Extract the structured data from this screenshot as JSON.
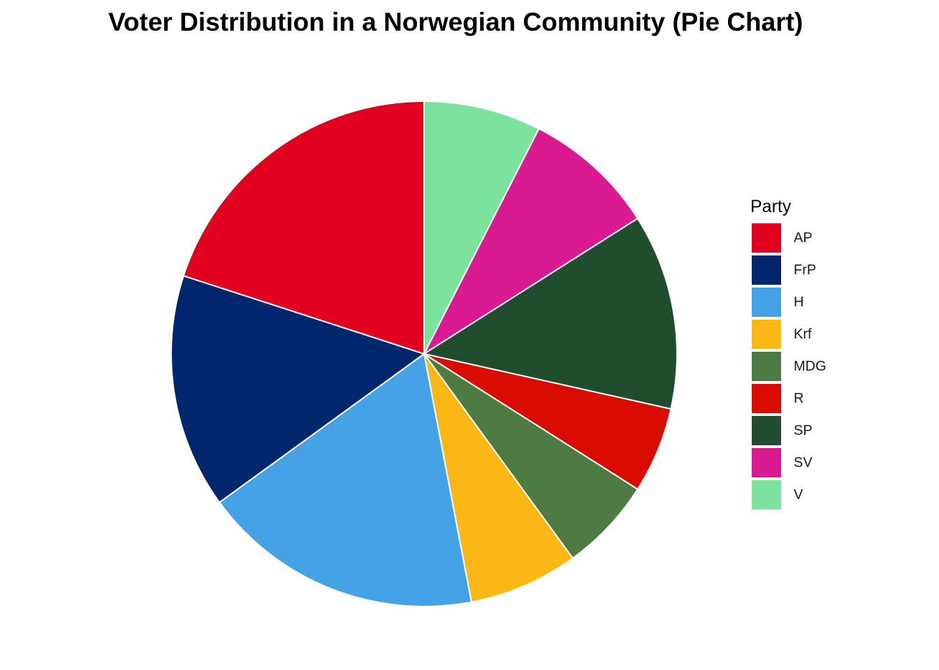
{
  "chart_data": {
    "type": "pie",
    "title": "Voter Distribution in a Norwegian Community (Pie Chart)",
    "legend_title": "Party",
    "legend_position": "right",
    "start_angle_deg": 0,
    "direction": "clockwise",
    "slice_order": [
      "V",
      "SV",
      "SP",
      "R",
      "MDG",
      "Krf",
      "H",
      "FrP",
      "AP"
    ],
    "series": [
      {
        "name": "AP",
        "value": 20.0,
        "color": "#E1001E"
      },
      {
        "name": "FrP",
        "value": 15.0,
        "color": "#00266E"
      },
      {
        "name": "H",
        "value": 18.0,
        "color": "#45A3E5"
      },
      {
        "name": "Krf",
        "value": 7.0,
        "color": "#FBB716"
      },
      {
        "name": "MDG",
        "value": 6.0,
        "color": "#4E7B44"
      },
      {
        "name": "R",
        "value": 5.5,
        "color": "#DA0B00"
      },
      {
        "name": "SP",
        "value": 12.5,
        "color": "#1F4D2E"
      },
      {
        "name": "SV",
        "value": 8.5,
        "color": "#D91A91"
      },
      {
        "name": "V",
        "value": 7.5,
        "color": "#7BE39E"
      }
    ]
  }
}
